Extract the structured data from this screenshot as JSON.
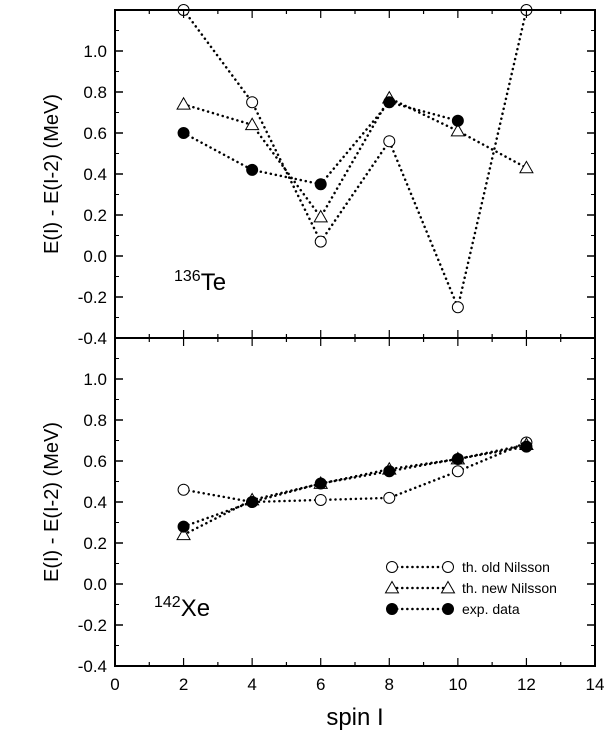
{
  "chart_data": [
    {
      "type": "line",
      "panel_label": "Te",
      "panel_label_mass": "136",
      "ylabel": "E(I) - E(I-2) (MeV)",
      "xlim": [
        0,
        14
      ],
      "ylim": [
        -0.4,
        1.2
      ],
      "y_ticks": [
        "-0.4",
        "-0.2",
        "0.0",
        "0.2",
        "0.4",
        "0.6",
        "0.8",
        "1.0"
      ],
      "grid": false,
      "series": [
        {
          "marker": "open-circle",
          "x": [
            2,
            4,
            6,
            8,
            10,
            12
          ],
          "y": [
            1.2,
            0.75,
            0.07,
            0.56,
            -0.25,
            1.2
          ]
        },
        {
          "marker": "open-triangle",
          "x": [
            2,
            4,
            6,
            8,
            10,
            12
          ],
          "y": [
            0.74,
            0.64,
            0.19,
            0.77,
            0.61,
            0.43
          ]
        },
        {
          "marker": "filled-circle",
          "x": [
            2,
            4,
            6,
            8,
            10
          ],
          "y": [
            0.6,
            0.42,
            0.35,
            0.75,
            0.66
          ]
        }
      ]
    },
    {
      "type": "line",
      "panel_label": "Xe",
      "panel_label_mass": "142",
      "ylabel": "E(I) - E(I-2) (MeV)",
      "xlabel": "spin I",
      "xlim": [
        0,
        14
      ],
      "ylim": [
        -0.4,
        1.2
      ],
      "x_ticks": [
        "0",
        "2",
        "4",
        "6",
        "8",
        "10",
        "12",
        "14"
      ],
      "y_ticks": [
        "-0.4",
        "-0.2",
        "0.0",
        "0.2",
        "0.4",
        "0.6",
        "0.8",
        "1.0"
      ],
      "grid": false,
      "legend_position": "bottom-right",
      "legend": [
        {
          "marker": "open-circle",
          "label": "th. old Nilsson"
        },
        {
          "marker": "open-triangle",
          "label": "th. new Nilsson"
        },
        {
          "marker": "filled-circle",
          "label": "exp. data"
        }
      ],
      "series": [
        {
          "marker": "open-circle",
          "x": [
            2,
            4,
            6,
            8,
            10,
            12
          ],
          "y": [
            0.46,
            0.4,
            0.41,
            0.42,
            0.55,
            0.69
          ]
        },
        {
          "marker": "open-triangle",
          "x": [
            2,
            4,
            6,
            8,
            10,
            12
          ],
          "y": [
            0.24,
            0.41,
            0.49,
            0.56,
            0.61,
            0.68
          ]
        },
        {
          "marker": "filled-circle",
          "x": [
            2,
            4,
            6,
            8,
            10,
            12
          ],
          "y": [
            0.28,
            0.4,
            0.49,
            0.55,
            0.61,
            0.67
          ]
        }
      ]
    }
  ]
}
